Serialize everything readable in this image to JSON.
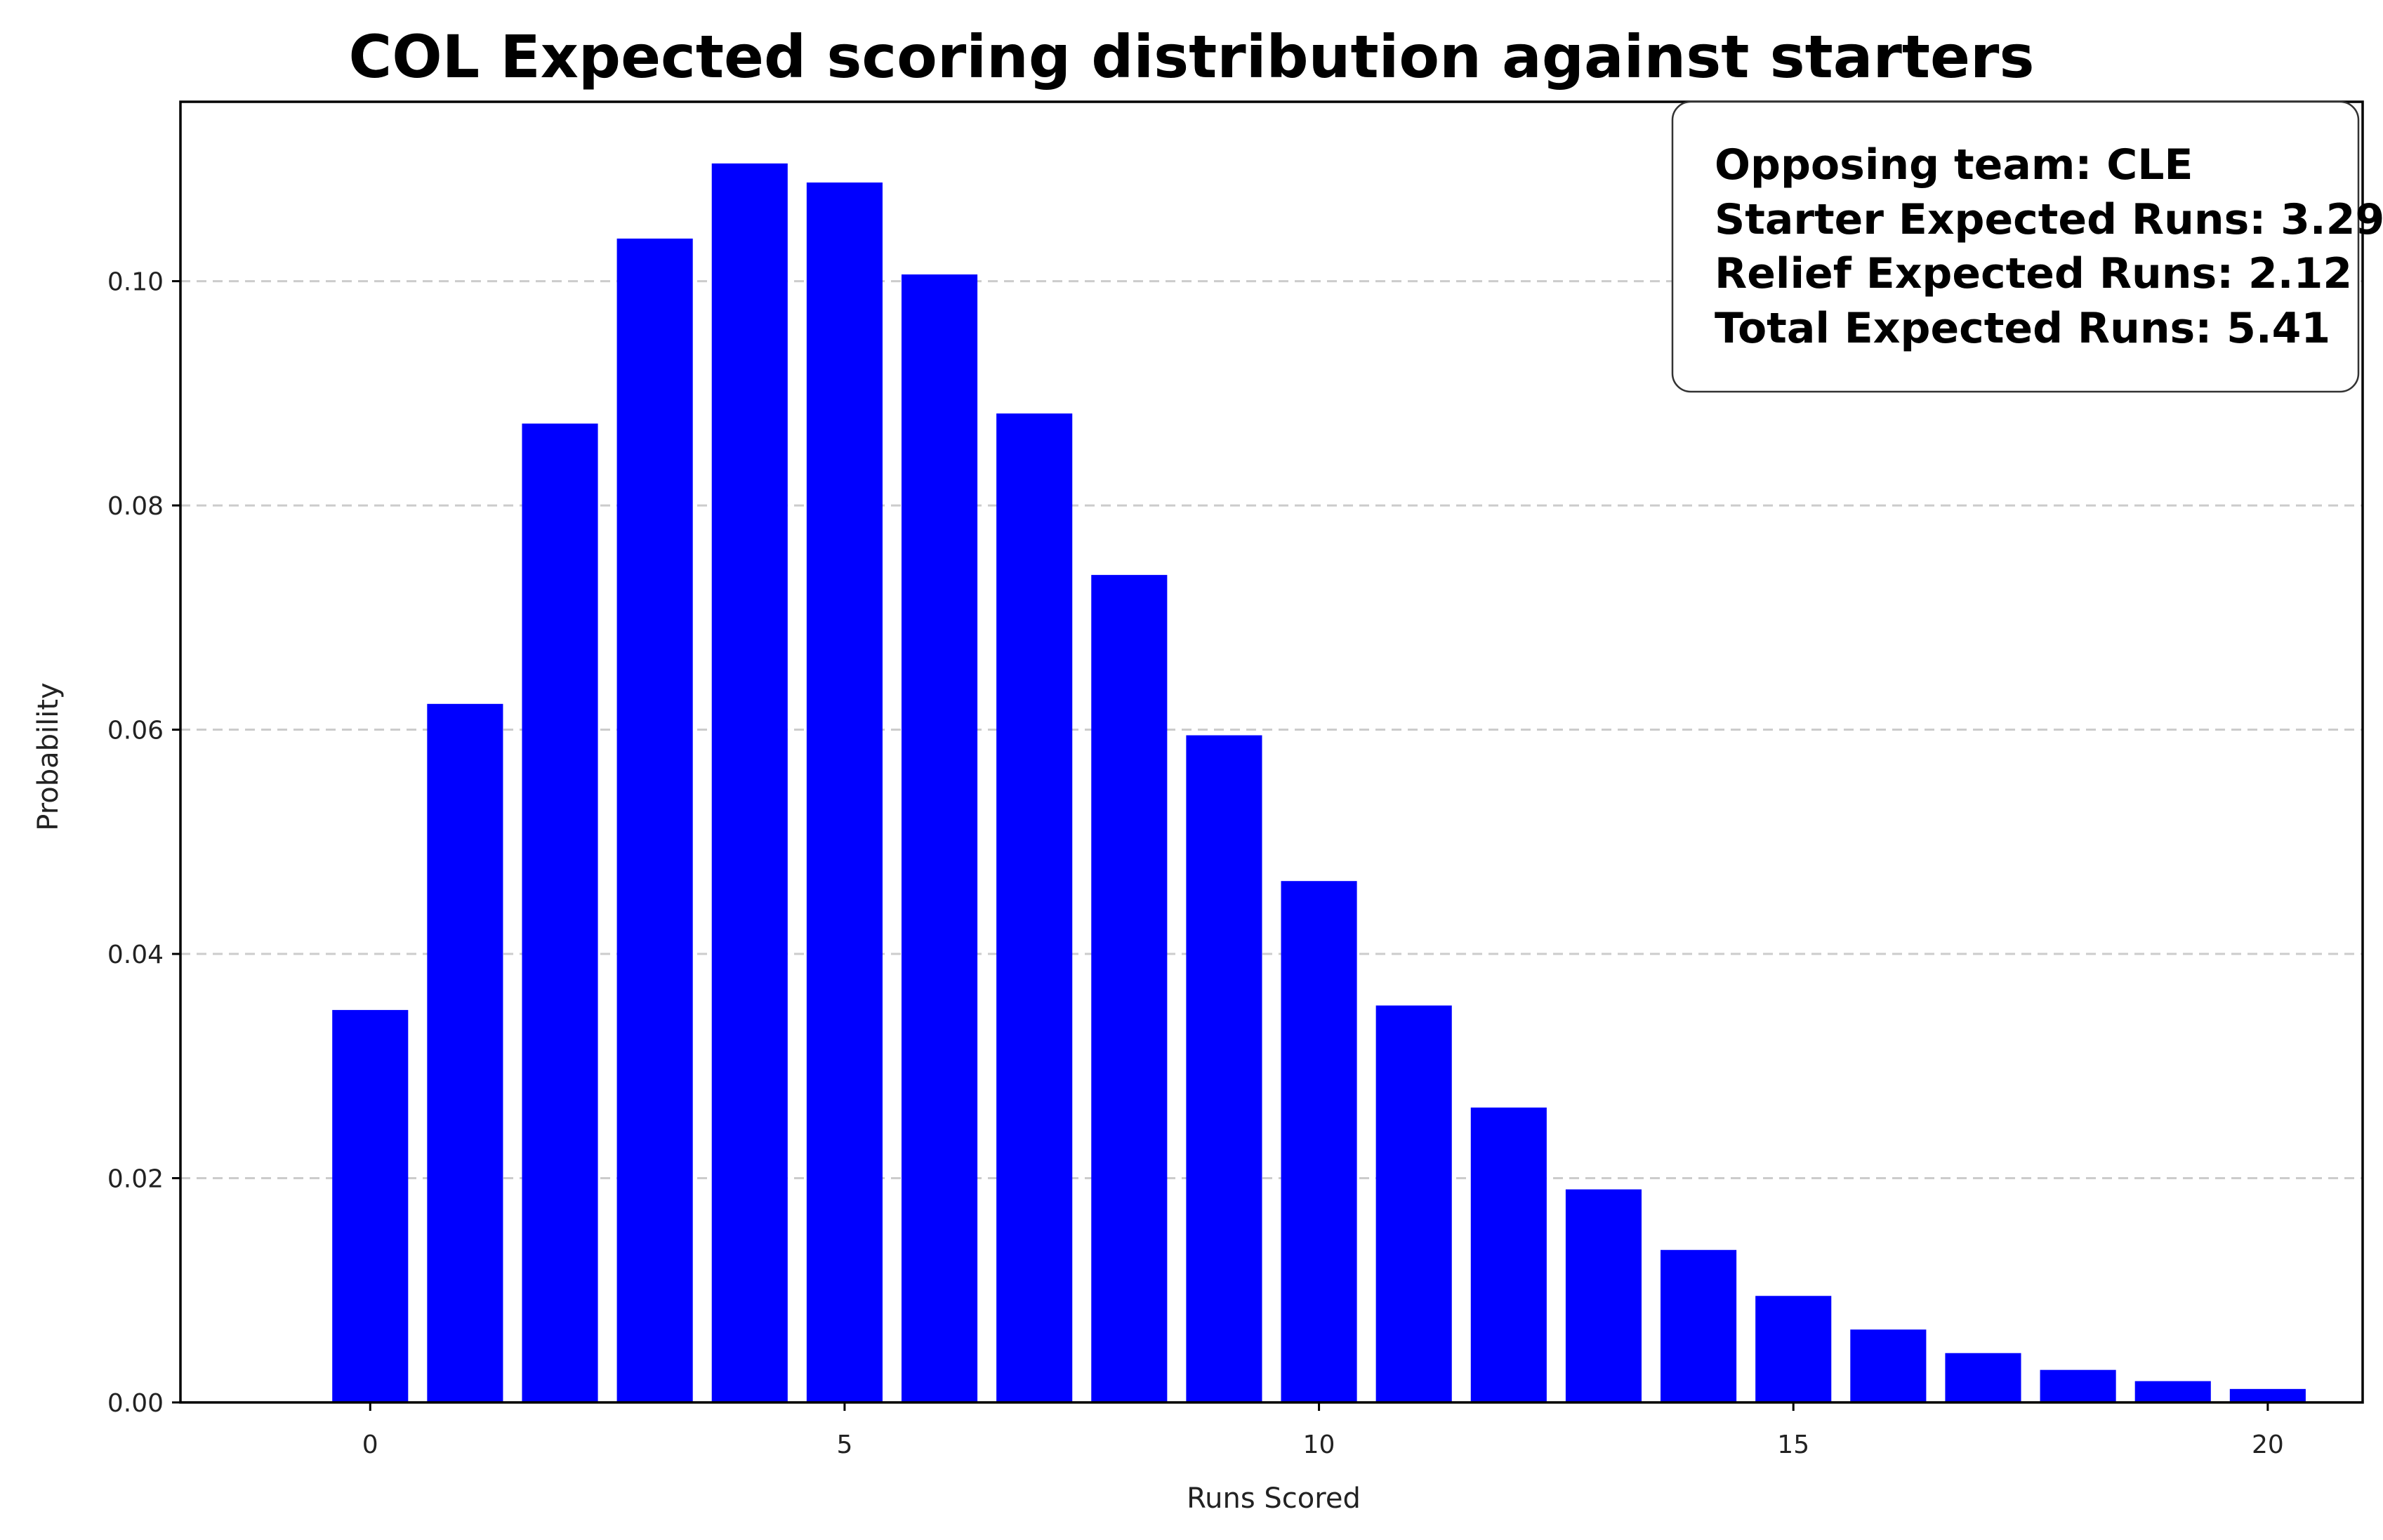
{
  "chart_data": {
    "type": "bar",
    "title": "COL Expected scoring distribution against starters",
    "xlabel": "Runs Scored",
    "ylabel": "Probability",
    "x": [
      0,
      1,
      2,
      3,
      4,
      5,
      6,
      7,
      8,
      9,
      10,
      11,
      12,
      13,
      14,
      15,
      16,
      17,
      18,
      19,
      20
    ],
    "values": [
      0.035,
      0.0623,
      0.0873,
      0.1038,
      0.1105,
      0.1088,
      0.1006,
      0.0882,
      0.0738,
      0.0595,
      0.0465,
      0.0354,
      0.0263,
      0.019,
      0.0136,
      0.0095,
      0.0065,
      0.0044,
      0.0029,
      0.0019,
      0.0012
    ],
    "color": "#0000ff",
    "xlim": [
      -2.0,
      21.0
    ],
    "ylim": [
      0,
      0.116
    ],
    "xticks": [
      0,
      5,
      10,
      15,
      20
    ],
    "xtick_labels": [
      "0",
      "5",
      "10",
      "15",
      "20"
    ],
    "yticks": [
      0,
      0.02,
      0.04,
      0.06,
      0.08,
      0.1
    ],
    "ytick_labels": [
      "0.00",
      "0.02",
      "0.04",
      "0.06",
      "0.08",
      "0.10"
    ],
    "grid": "y-dashed",
    "annotation": {
      "placement": "top-right",
      "lines": [
        "Opposing team: CLE",
        "Starter Expected Runs: 3.29",
        "Relief Expected Runs: 2.12",
        "Total Expected Runs: 5.41"
      ]
    }
  }
}
